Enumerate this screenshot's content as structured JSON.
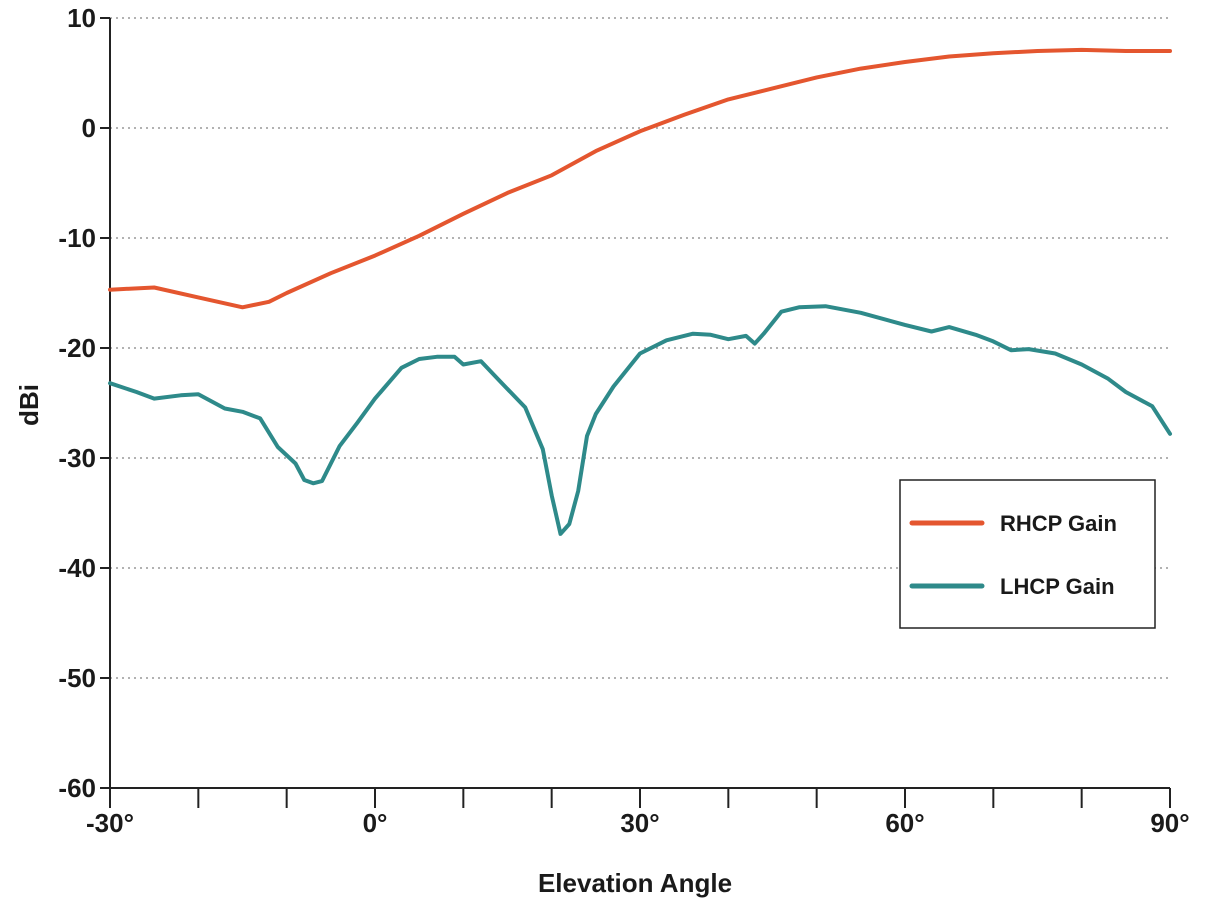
{
  "chart_data": {
    "type": "line",
    "xlabel": "Elevation Angle",
    "ylabel": "dBi",
    "xlim": [
      -30,
      90
    ],
    "ylim": [
      -60,
      10
    ],
    "grid": true,
    "legend_position": "right",
    "y_ticks": [
      {
        "value": 10,
        "label": "10"
      },
      {
        "value": 0,
        "label": "0"
      },
      {
        "value": -10,
        "label": "-10"
      },
      {
        "value": -20,
        "label": "-20"
      },
      {
        "value": -30,
        "label": "-30"
      },
      {
        "value": -40,
        "label": "-40"
      },
      {
        "value": -50,
        "label": "-50"
      },
      {
        "value": -60,
        "label": "-60"
      }
    ],
    "x_ticks": [
      {
        "value": -30,
        "label": "-30°"
      },
      {
        "value": 0,
        "label": "0°"
      },
      {
        "value": 30,
        "label": "30°"
      },
      {
        "value": 60,
        "label": "60°"
      },
      {
        "value": 90,
        "label": "90°"
      }
    ],
    "x_minor_ticks": [
      -20,
      -10,
      10,
      20,
      40,
      50,
      70,
      80
    ],
    "series": [
      {
        "name": "RHCP Gain",
        "color": "#e4562f",
        "x": [
          -30,
          -25,
          -20,
          -15,
          -12,
          -10,
          -5,
          0,
          5,
          10,
          15,
          20,
          25,
          30,
          35,
          40,
          45,
          50,
          55,
          60,
          65,
          70,
          75,
          80,
          85,
          90
        ],
        "y": [
          -14.7,
          -14.5,
          -15.4,
          -16.3,
          -15.8,
          -15.0,
          -13.2,
          -11.6,
          -9.8,
          -7.8,
          -5.9,
          -4.3,
          -2.1,
          -0.3,
          1.2,
          2.6,
          3.6,
          4.6,
          5.4,
          6.0,
          6.5,
          6.8,
          7.0,
          7.1,
          7.0,
          7.0
        ]
      },
      {
        "name": "LHCP Gain",
        "color": "#2e8a8a",
        "x": [
          -30,
          -27,
          -25,
          -22,
          -20,
          -17,
          -15,
          -13,
          -11,
          -9,
          -8,
          -7,
          -6,
          -4,
          -2,
          0,
          3,
          5,
          7,
          9,
          10,
          12,
          14,
          17,
          19,
          20,
          21,
          22,
          23,
          24,
          25,
          27,
          30,
          33,
          36,
          38,
          40,
          42,
          43,
          44,
          46,
          48,
          51,
          55,
          60,
          63,
          65,
          68,
          70,
          72,
          74,
          77,
          80,
          83,
          85,
          88,
          90
        ],
        "y": [
          -23.2,
          -24.0,
          -24.6,
          -24.3,
          -24.2,
          -25.5,
          -25.8,
          -26.4,
          -29.0,
          -30.5,
          -32.0,
          -32.3,
          -32.1,
          -28.9,
          -26.8,
          -24.6,
          -21.8,
          -21.0,
          -20.8,
          -20.8,
          -21.5,
          -21.2,
          -22.9,
          -25.4,
          -29.2,
          -33.4,
          -36.9,
          -36.0,
          -33.0,
          -28.0,
          -26.0,
          -23.5,
          -20.5,
          -19.3,
          -18.7,
          -18.8,
          -19.2,
          -18.9,
          -19.6,
          -18.7,
          -16.7,
          -16.3,
          -16.2,
          -16.8,
          -17.9,
          -18.5,
          -18.1,
          -18.8,
          -19.4,
          -20.2,
          -20.1,
          -20.5,
          -21.5,
          -22.8,
          -24.0,
          -25.3,
          -27.8
        ]
      }
    ]
  }
}
